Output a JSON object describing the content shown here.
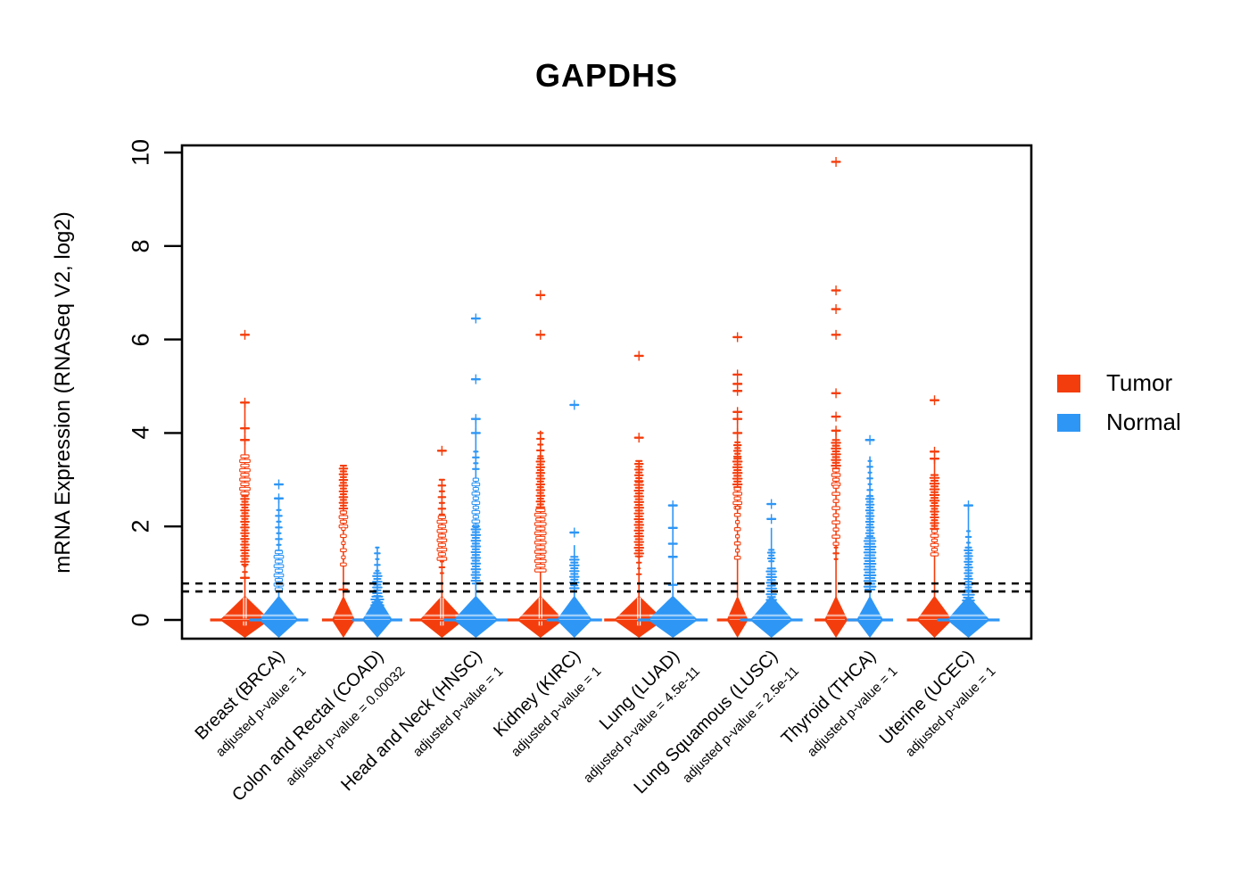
{
  "title": "GAPDHS",
  "y_axis": {
    "label": "mRNA Expression (RNASeq V2, log2)",
    "tick_labels": [
      "0",
      "2",
      "4",
      "6",
      "8",
      "10"
    ]
  },
  "legend": {
    "items": [
      {
        "label": "Tumor",
        "color": "#F43D0C"
      },
      {
        "label": "Normal",
        "color": "#2E96F5"
      }
    ]
  },
  "chart_data": {
    "type": "scatter",
    "subtype": "beeswarm-strip-plot",
    "title": "GAPDHS",
    "ylabel": "mRNA Expression (RNASeq V2, log2)",
    "ylim": [
      -0.45,
      10.2
    ],
    "y_ticks": [
      0,
      2,
      4,
      6,
      8,
      10
    ],
    "grid": false,
    "legend_position": "right",
    "threshold_lines": [
      0.78,
      0.61
    ],
    "series_colors": {
      "tumor": "#F43D0C",
      "normal": "#2E96F5"
    },
    "groups": [
      {
        "category": "Breast (BRCA)",
        "pvalue_label": "adjusted p-value = 1",
        "tumor": {
          "median": 0,
          "max": 6.1,
          "outliers": [
            6.1,
            4.65,
            4.1,
            3.85,
            0.9
          ],
          "dense_bands": [
            [
              2.65,
              3.5,
              5,
              "outline"
            ],
            [
              1.15,
              2.65,
              4.5,
              "solid"
            ],
            [
              0.9,
              1.15,
              2.5,
              "sparse"
            ]
          ],
          "stem": [
            0.5,
            4.65
          ],
          "diamond_halfwidth": 28,
          "slit": true
        },
        "normal": {
          "median": 0,
          "max": 2.9,
          "outliers": [
            2.9,
            2.6
          ],
          "dense_bands": [
            [
              1.45,
              2.35,
              3.5,
              "sparse"
            ],
            [
              0.6,
              1.45,
              4.5,
              "outline"
            ]
          ],
          "stem": [
            0.45,
            2.6
          ],
          "diamond_halfwidth": 22,
          "slit": false
        }
      },
      {
        "category": "Colon and Rectal (COAD)",
        "pvalue_label": "adjusted p-value = 0.00032",
        "tumor": {
          "median": 0,
          "max": 3.3,
          "outliers": [
            0.65
          ],
          "dense_bands": [
            [
              2.3,
              3.3,
              4.5,
              "solid"
            ],
            [
              1.95,
              2.3,
              4,
              "outline"
            ],
            [
              1.05,
              1.95,
              2.5,
              "outline-sparse"
            ]
          ],
          "stem": [
            0.5,
            3.3
          ],
          "diamond_halfwidth": 13,
          "slit": false
        },
        "normal": {
          "median": 0,
          "max": 1.56,
          "outliers": [],
          "dense_bands": [
            [
              1.0,
              1.55,
              3,
              "sparse"
            ],
            [
              0.5,
              1.0,
              5,
              "solid"
            ],
            [
              0.15,
              0.5,
              7,
              "solid"
            ]
          ],
          "stem": [
            0.4,
            1.56
          ],
          "diamond_halfwidth": 17,
          "slit": false
        }
      },
      {
        "category": "Head and Neck (HNSC)",
        "pvalue_label": "adjusted p-value = 1",
        "tumor": {
          "median": 0,
          "max": 3.62,
          "outliers": [
            3.62
          ],
          "dense_bands": [
            [
              2.2,
              3.0,
              4,
              "sparse"
            ],
            [
              1.25,
              2.2,
              4.5,
              "outline"
            ],
            [
              0.95,
              1.25,
              3,
              "sparse"
            ]
          ],
          "stem": [
            0.5,
            3.0
          ],
          "diamond_halfwidth": 25,
          "slit": true
        },
        "normal": {
          "median": 0,
          "max": 6.45,
          "outliers": [
            6.45,
            5.15,
            4.3,
            4.0
          ],
          "dense_bands": [
            [
              3.15,
              3.6,
              3.5,
              "sparse"
            ],
            [
              2.0,
              3.0,
              3.5,
              "outline"
            ],
            [
              0.75,
              2.0,
              5,
              "solid"
            ]
          ],
          "stem": [
            0.45,
            4.3
          ],
          "diamond_halfwidth": 25,
          "slit": false
        }
      },
      {
        "category": "Kidney (KIRC)",
        "pvalue_label": "adjusted p-value = 1",
        "tumor": {
          "median": 0,
          "max": 6.95,
          "outliers": [
            6.95,
            6.1
          ],
          "dense_bands": [
            [
              3.45,
              4.0,
              4,
              "sparse"
            ],
            [
              2.35,
              3.45,
              4.5,
              "solid"
            ],
            [
              1.0,
              2.35,
              5.5,
              "outline"
            ]
          ],
          "stem": [
            0.5,
            4.05
          ],
          "diamond_halfwidth": 26,
          "slit": true
        },
        "normal": {
          "median": 0,
          "max": 4.6,
          "outliers": [
            4.6,
            1.87
          ],
          "dense_bands": [
            [
              0.65,
              1.35,
              5,
              "solid"
            ]
          ],
          "stem": [
            0.4,
            1.6
          ],
          "diamond_halfwidth": 20,
          "slit": false
        }
      },
      {
        "category": "Lung (LUAD)",
        "pvalue_label": "adjusted p-value = 4.5e-11",
        "tumor": {
          "median": 0,
          "max": 5.65,
          "outliers": [
            5.65,
            3.9
          ],
          "dense_bands": [
            [
              2.95,
              3.4,
              4.5,
              "solid"
            ],
            [
              1.35,
              2.95,
              5,
              "solid"
            ],
            [
              0.9,
              1.35,
              2.5,
              "sparse"
            ]
          ],
          "stem": [
            0.5,
            3.4
          ],
          "diamond_halfwidth": 28,
          "slit": true
        },
        "normal": {
          "median": 0,
          "max": 2.45,
          "outliers": [
            2.45,
            1.97,
            1.63,
            1.35,
            0.75
          ],
          "dense_bands": [],
          "stem": [
            0.4,
            2.45
          ],
          "diamond_halfwidth": 28,
          "slit": false
        }
      },
      {
        "category": "Lung Squamous (LUSC)",
        "pvalue_label": "adjusted p-value = 2.5e-11",
        "tumor": {
          "median": 0,
          "max": 6.05,
          "outliers": [
            6.05,
            5.25,
            5.05,
            4.9,
            4.45,
            4.3,
            4.0
          ],
          "dense_bands": [
            [
              3.45,
              3.8,
              4,
              "solid"
            ],
            [
              2.8,
              3.45,
              5,
              "solid"
            ],
            [
              2.4,
              2.8,
              4,
              "outline"
            ],
            [
              1.2,
              2.4,
              2.5,
              "outline-sparse"
            ]
          ],
          "stem": [
            0.5,
            4.45
          ],
          "diamond_halfwidth": 12,
          "slit": false
        },
        "normal": {
          "median": 0,
          "max": 2.48,
          "outliers": [
            2.48,
            2.16
          ],
          "dense_bands": [
            [
              1.2,
              1.5,
              4,
              "solid"
            ],
            [
              0.35,
              1.1,
              5.5,
              "solid"
            ]
          ],
          "stem": [
            0.4,
            1.97
          ],
          "diamond_halfwidth": 24,
          "slit": false
        }
      },
      {
        "category": "Thyroid (THCA)",
        "pvalue_label": "adjusted p-value = 1",
        "tumor": {
          "median": 0,
          "max": 9.8,
          "outliers": [
            9.8,
            7.05,
            6.65,
            6.1,
            4.85,
            4.35,
            4.05
          ],
          "dense_bands": [
            [
              3.2,
              3.85,
              5,
              "solid"
            ],
            [
              2.85,
              3.2,
              4,
              "outline"
            ],
            [
              1.55,
              2.85,
              3.5,
              "outline-sparse"
            ],
            [
              1.3,
              1.55,
              3,
              "sparse"
            ]
          ],
          "stem": [
            0.4,
            4.05
          ],
          "diamond_halfwidth": 13,
          "slit": false
        },
        "normal": {
          "median": 0,
          "max": 3.85,
          "outliers": [
            3.85
          ],
          "dense_bands": [
            [
              2.65,
              3.4,
              3,
              "sparse"
            ],
            [
              1.75,
              2.65,
              4.5,
              "solid"
            ],
            [
              0.65,
              1.75,
              6.5,
              "solid"
            ]
          ],
          "stem": [
            0.3,
            3.5
          ],
          "diamond_halfwidth": 15,
          "slit": false
        }
      },
      {
        "category": "Uterine (UCEC)",
        "pvalue_label": "adjusted p-value = 1",
        "tumor": {
          "median": 0,
          "max": 4.7,
          "outliers": [
            4.7,
            3.6,
            3.45
          ],
          "dense_bands": [
            [
              2.5,
              3.1,
              5,
              "solid"
            ],
            [
              1.9,
              2.5,
              4.5,
              "solid"
            ],
            [
              1.35,
              1.9,
              3.5,
              "outline"
            ]
          ],
          "stem": [
            0.5,
            3.45
          ],
          "diamond_halfwidth": 20,
          "slit": false
        },
        "normal": {
          "median": 0,
          "max": 2.45,
          "outliers": [
            2.45
          ],
          "dense_bands": [
            [
              1.55,
              1.9,
              3,
              "sparse"
            ],
            [
              0.6,
              1.55,
              4.5,
              "solid"
            ],
            [
              0.25,
              0.6,
              6.5,
              "solid"
            ]
          ],
          "stem": [
            0.3,
            2.45
          ],
          "diamond_halfwidth": 24,
          "slit": false
        }
      }
    ]
  }
}
